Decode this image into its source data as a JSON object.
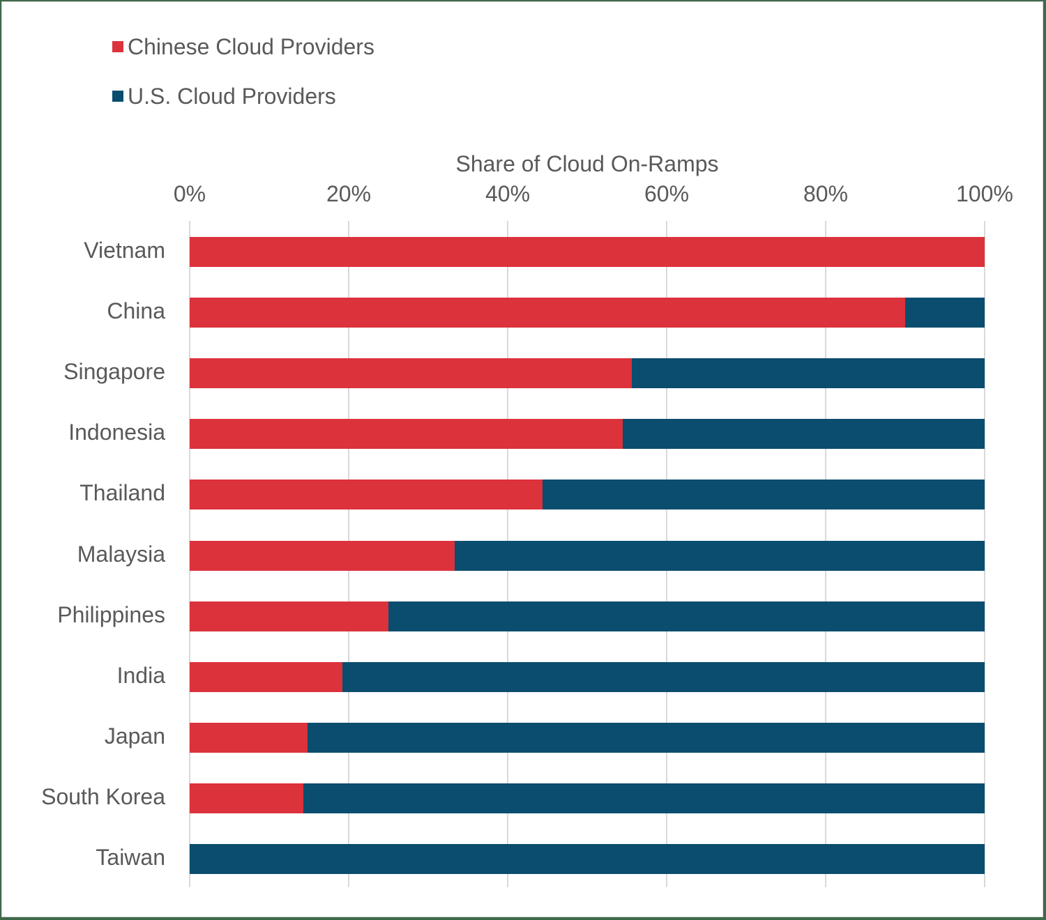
{
  "chart_data": {
    "type": "bar",
    "orientation": "horizontal",
    "stacked": "percent",
    "title": "",
    "xlabel": "Share of Cloud On-Ramps",
    "ylabel": "",
    "xlim": [
      0,
      100
    ],
    "x_ticks": [
      "0%",
      "20%",
      "40%",
      "60%",
      "80%",
      "100%"
    ],
    "grid": true,
    "legend_position": "top-left",
    "categories": [
      "Vietnam",
      "China",
      "Singapore",
      "Indonesia",
      "Thailand",
      "Malaysia",
      "Philippines",
      "India",
      "Japan",
      "South Korea",
      "Taiwan"
    ],
    "series": [
      {
        "name": "Chinese Cloud Providers",
        "color": "#dc323c",
        "values": [
          100,
          90,
          55.6,
          54.5,
          44.4,
          33.3,
          25,
          19.2,
          14.8,
          14.3,
          0
        ]
      },
      {
        "name": "U.S. Cloud Providers",
        "color": "#0a4d6e",
        "values": [
          0,
          10,
          44.4,
          45.5,
          55.6,
          66.7,
          75,
          80.8,
          85.2,
          85.7,
          100
        ]
      }
    ]
  },
  "legend": {
    "items": [
      {
        "label": "Chinese Cloud Providers",
        "color": "#dc323c"
      },
      {
        "label": "U.S. Cloud Providers",
        "color": "#0a4d6e"
      }
    ]
  },
  "axis": {
    "title": "Share of Cloud On-Ramps",
    "ticks": [
      "0%",
      "20%",
      "40%",
      "60%",
      "80%",
      "100%"
    ]
  }
}
